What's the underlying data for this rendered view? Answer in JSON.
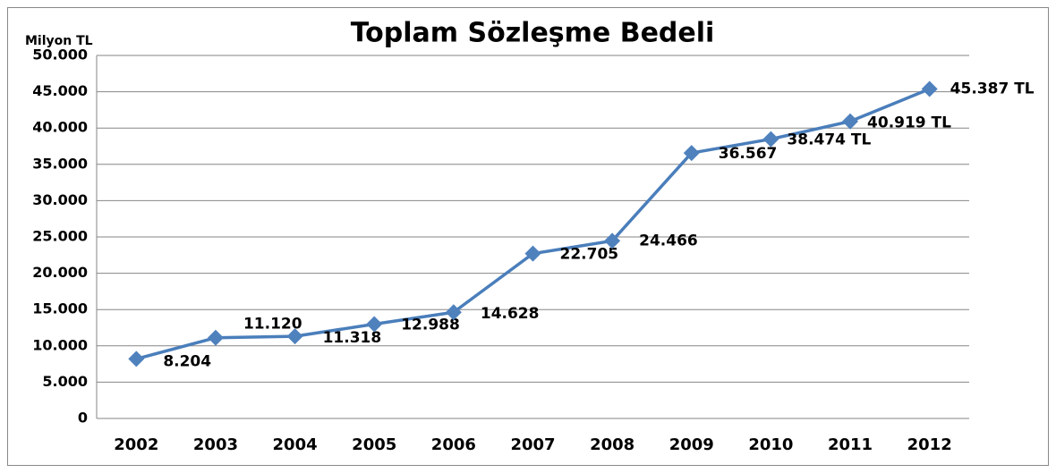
{
  "chart_data": {
    "type": "line",
    "title": "Toplam Sözleşme Bedeli",
    "y_label": "Milyon TL",
    "categories": [
      "2002",
      "2003",
      "2004",
      "2005",
      "2006",
      "2007",
      "2008",
      "2009",
      "2010",
      "2011",
      "2012"
    ],
    "series": [
      {
        "name": "Toplam Sözleşme Bedeli",
        "color": "#4a7ebb",
        "values": [
          8204,
          11120,
          11318,
          12988,
          14628,
          22705,
          24466,
          36567,
          38474,
          40919,
          45387
        ],
        "value_labels": [
          "8.204",
          "11.120",
          "11.318",
          "12.988",
          "14.628",
          "22.705",
          "24.466",
          "36.567",
          "38.474 TL",
          "40.919 TL",
          "45.387 TL"
        ]
      }
    ],
    "ylim": [
      0,
      50000
    ],
    "yticks": [
      0,
      {
        "value": 5000,
        "label": "5.000"
      },
      {
        "value": 10000,
        "label": "10.000"
      },
      {
        "value": 15000,
        "label": "15.000"
      },
      {
        "value": 20000,
        "label": "20.000"
      },
      {
        "value": 25000,
        "label": "25.000"
      },
      {
        "value": 30000,
        "label": "30.000"
      },
      {
        "value": 35000,
        "label": "35.000"
      },
      {
        "value": 40000,
        "label": "40.000"
      },
      {
        "value": 45000,
        "label": "45.000"
      },
      {
        "value": 50000,
        "label": "50.000"
      }
    ],
    "grid": true
  }
}
